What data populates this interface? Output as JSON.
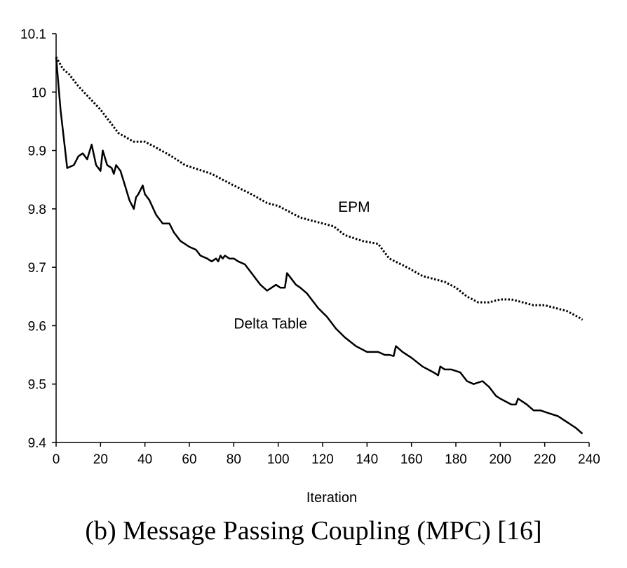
{
  "chart_data": {
    "type": "line",
    "xlabel": "Iteration",
    "ylabel": "",
    "xlim": [
      0,
      240
    ],
    "ylim": [
      9.4,
      10.1
    ],
    "x_ticks": [
      "0",
      "20",
      "40",
      "60",
      "80",
      "100",
      "120",
      "140",
      "160",
      "180",
      "200",
      "220",
      "240"
    ],
    "y_ticks": [
      "10.1",
      "10",
      "9.9",
      "9.8",
      "9.7",
      "9.6",
      "9.5",
      "9.4"
    ],
    "grid": false,
    "series": [
      {
        "name": "EPM",
        "style": "dotted",
        "x": [
          0,
          3,
          6,
          10,
          15,
          20,
          24,
          28,
          35,
          40,
          45,
          52,
          58,
          62,
          70,
          80,
          88,
          95,
          100,
          105,
          110,
          115,
          125,
          130,
          138,
          145,
          148,
          150,
          158,
          165,
          175,
          180,
          185,
          190,
          195,
          200,
          205,
          210,
          215,
          220,
          225,
          230,
          235,
          237
        ],
        "y": [
          10.06,
          10.04,
          10.03,
          10.01,
          9.99,
          9.97,
          9.95,
          9.93,
          9.915,
          9.915,
          9.905,
          9.89,
          9.875,
          9.87,
          9.86,
          9.84,
          9.825,
          9.81,
          9.805,
          9.795,
          9.785,
          9.78,
          9.77,
          9.755,
          9.745,
          9.74,
          9.725,
          9.715,
          9.7,
          9.685,
          9.675,
          9.665,
          9.65,
          9.64,
          9.64,
          9.645,
          9.645,
          9.64,
          9.635,
          9.635,
          9.63,
          9.625,
          9.615,
          9.61
        ]
      },
      {
        "name": "Delta Table",
        "style": "solid",
        "x": [
          0,
          2,
          5,
          8,
          10,
          12,
          14,
          16,
          18,
          20,
          21,
          23,
          25,
          26,
          27,
          29,
          31,
          33,
          35,
          36,
          37,
          39,
          40,
          42,
          45,
          48,
          51,
          53,
          56,
          60,
          63,
          65,
          68,
          70,
          72,
          73,
          74,
          75,
          76,
          78,
          80,
          82,
          85,
          88,
          92,
          95,
          97,
          99,
          101,
          103,
          104,
          106,
          108,
          110,
          113,
          115,
          118,
          122,
          126,
          130,
          135,
          140,
          145,
          148,
          150,
          152,
          153,
          156,
          160,
          165,
          170,
          172,
          173,
          175,
          178,
          182,
          185,
          188,
          192,
          195,
          198,
          200,
          205,
          207,
          208,
          210,
          212,
          215,
          218,
          222,
          226,
          228,
          230,
          232,
          234,
          237
        ],
        "y": [
          10.06,
          9.97,
          9.87,
          9.875,
          9.89,
          9.895,
          9.885,
          9.91,
          9.875,
          9.865,
          9.9,
          9.875,
          9.87,
          9.86,
          9.875,
          9.865,
          9.84,
          9.815,
          9.8,
          9.82,
          9.825,
          9.84,
          9.825,
          9.815,
          9.79,
          9.775,
          9.775,
          9.76,
          9.745,
          9.735,
          9.73,
          9.72,
          9.715,
          9.71,
          9.715,
          9.71,
          9.72,
          9.715,
          9.72,
          9.715,
          9.715,
          9.71,
          9.705,
          9.69,
          9.67,
          9.66,
          9.665,
          9.67,
          9.665,
          9.665,
          9.69,
          9.68,
          9.67,
          9.665,
          9.655,
          9.645,
          9.63,
          9.615,
          9.595,
          9.58,
          9.565,
          9.555,
          9.555,
          9.55,
          9.55,
          9.548,
          9.565,
          9.555,
          9.545,
          9.53,
          9.52,
          9.515,
          9.53,
          9.525,
          9.525,
          9.52,
          9.505,
          9.5,
          9.505,
          9.495,
          9.48,
          9.475,
          9.465,
          9.465,
          9.475,
          9.47,
          9.465,
          9.455,
          9.455,
          9.45,
          9.445,
          9.44,
          9.435,
          9.43,
          9.425,
          9.415
        ]
      }
    ],
    "annotations": [
      {
        "text": "EPM",
        "x": 127,
        "y": 9.795
      },
      {
        "text": "Delta Table",
        "x": 80,
        "y": 9.595
      }
    ]
  },
  "caption": "(b) Message Passing Coupling (MPC) [16]"
}
